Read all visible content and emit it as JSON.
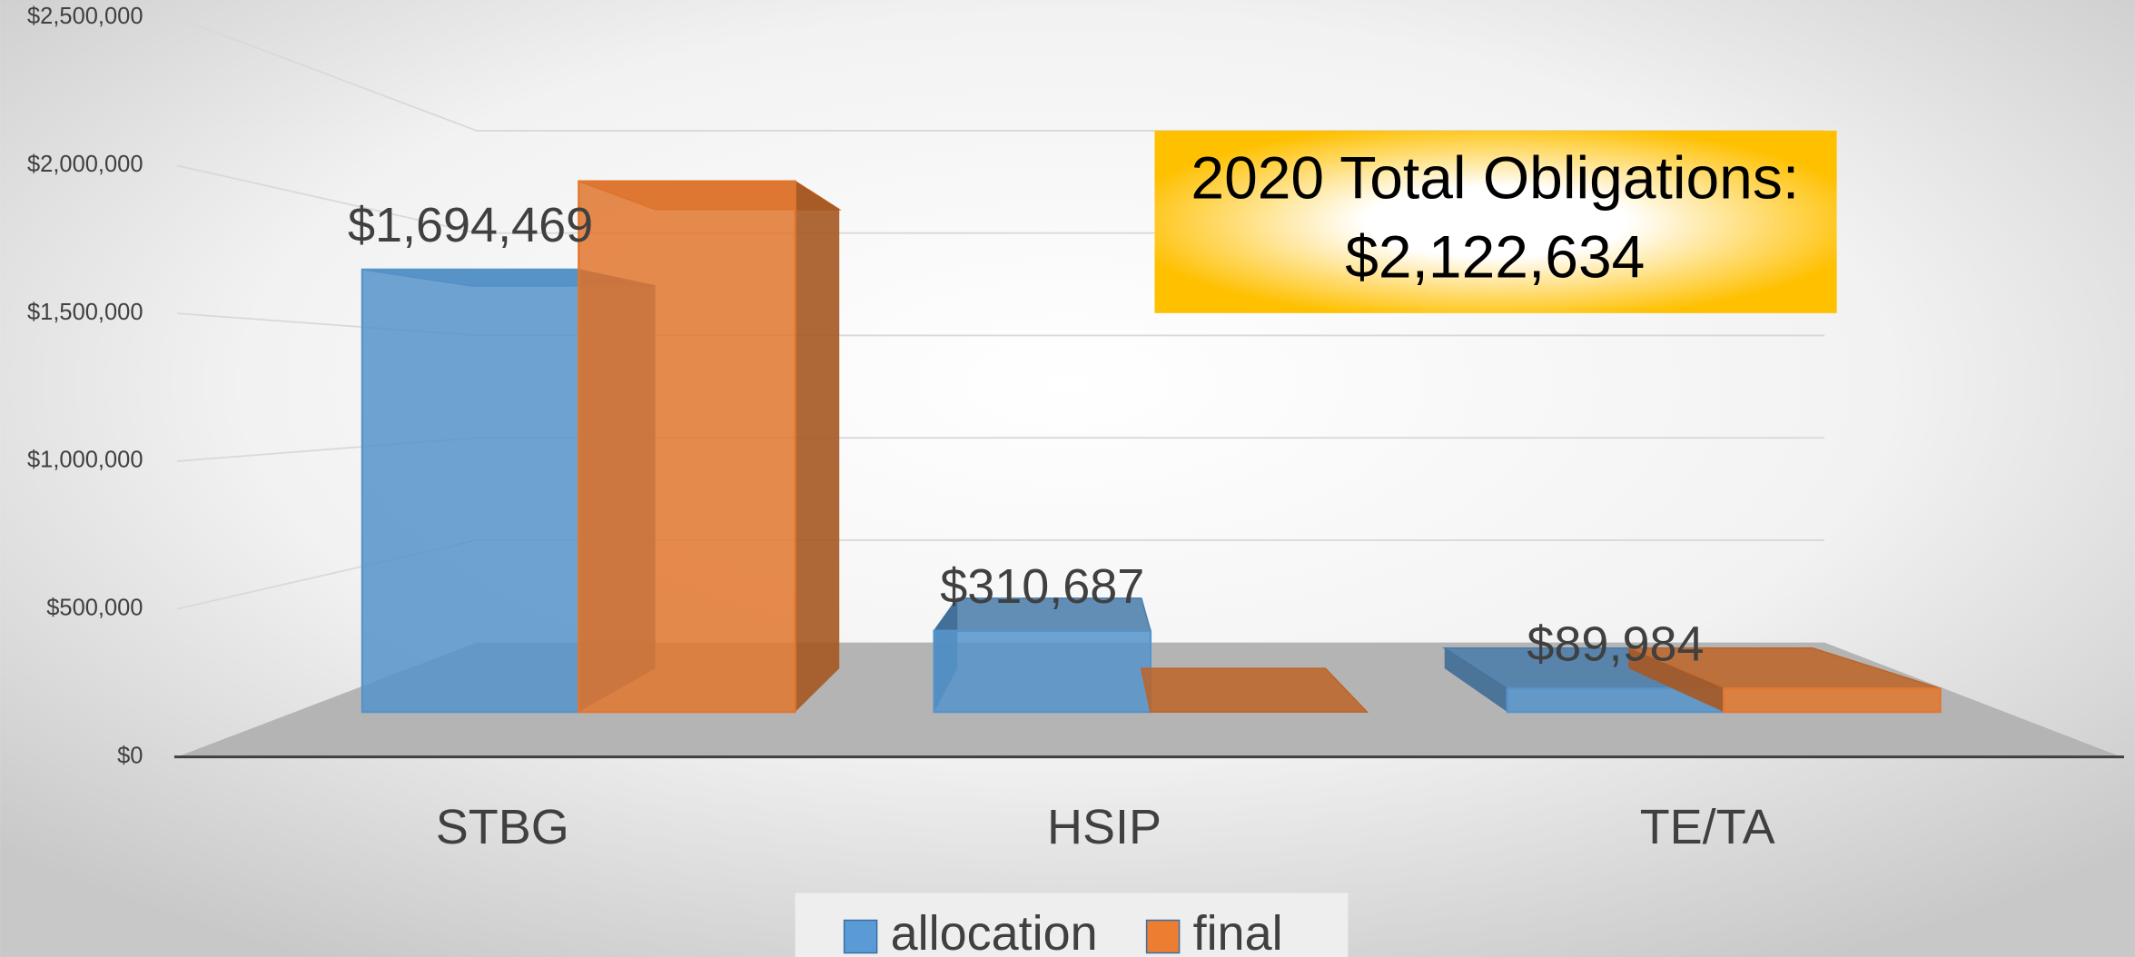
{
  "chart_data": {
    "type": "bar3d",
    "categories": [
      "STBG",
      "HSIP",
      "TE/TA"
    ],
    "series": [
      {
        "name": "allocation",
        "color": "#5b9bd5",
        "values": [
          1694469,
          310687,
          89984
        ],
        "value_labels": [
          "$1,694,469",
          "$310,687",
          "$89,984"
        ]
      },
      {
        "name": "final",
        "color": "#ed7d31",
        "values": [
          2032650,
          0,
          89984
        ]
      }
    ],
    "ylim": [
      0,
      2500000
    ],
    "yticks": [
      {
        "value": 0,
        "label": "$0"
      },
      {
        "value": 500000,
        "label": "$500,000"
      },
      {
        "value": 1000000,
        "label": "$1,000,000"
      },
      {
        "value": 1500000,
        "label": "$1,500,000"
      },
      {
        "value": 2000000,
        "label": "$2,000,000"
      },
      {
        "value": 2500000,
        "label": "$2,500,000"
      }
    ],
    "grid": true,
    "legend": "bottom",
    "annotations": [
      "2020 Total Obligations:",
      "$2,122,634"
    ]
  }
}
